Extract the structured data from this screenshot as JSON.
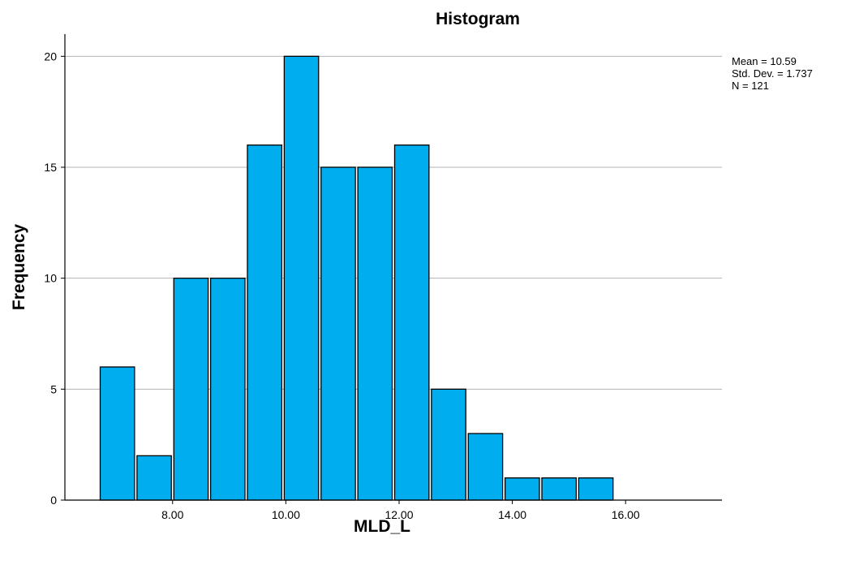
{
  "chart_data": {
    "type": "bar",
    "title": "Histogram",
    "xlabel": "MLD_L",
    "ylabel": "Frequency",
    "bin_edges": [
      6.7,
      7.35,
      8.0,
      8.65,
      9.3,
      9.95,
      10.6,
      11.25,
      11.9,
      12.55,
      13.2,
      13.85,
      14.5,
      15.15,
      15.8,
      16.45,
      17.1
    ],
    "values": [
      6,
      2,
      10,
      10,
      16,
      20,
      15,
      15,
      16,
      5,
      3,
      1,
      1,
      1,
      0,
      0
    ],
    "xlim": [
      6.7,
      17.1
    ],
    "ylim": [
      0,
      21
    ],
    "x_ticks": [
      8,
      10,
      12,
      14,
      16
    ],
    "x_tick_labels": [
      "8.00",
      "10.00",
      "12.00",
      "14.00",
      "16.00"
    ],
    "y_ticks": [
      0,
      5,
      10,
      15,
      20
    ],
    "y_tick_labels": [
      "0",
      "5",
      "10",
      "15",
      "20"
    ],
    "grid": "horizontal",
    "bar_color": "#00AEEF",
    "bar_edge_color": "#000000",
    "stats": {
      "mean": "Mean = 10.59",
      "std_dev": "Std. Dev. = 1.737",
      "n": "N = 121"
    }
  }
}
